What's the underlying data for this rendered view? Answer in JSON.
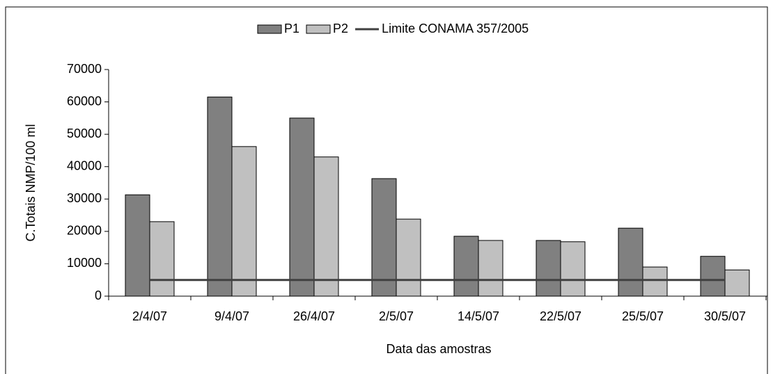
{
  "chart_data": {
    "type": "bar",
    "xlabel": "Data das amostras",
    "ylabel": "C.Totais NMP/100 ml",
    "categories": [
      "2/4/07",
      "9/4/07",
      "26/4/07",
      "2/5/07",
      "14/5/07",
      "22/5/07",
      "25/5/07",
      "30/5/07"
    ],
    "series": [
      {
        "name": "P1",
        "color": "#808080",
        "values": [
          31300,
          61500,
          55000,
          36300,
          18500,
          17200,
          21000,
          12300
        ]
      },
      {
        "name": "P2",
        "color": "#c0c0c0",
        "values": [
          23000,
          46200,
          43000,
          23800,
          17200,
          16800,
          9000,
          8100
        ]
      },
      {
        "name": "Limite CONAMA 357/2005",
        "color": "#404040",
        "type": "line",
        "values": [
          5000,
          5000,
          5000,
          5000,
          5000,
          5000,
          5000,
          5000
        ]
      }
    ],
    "ylim": [
      0,
      70000
    ],
    "yticks": [
      0,
      10000,
      20000,
      30000,
      40000,
      50000,
      60000,
      70000
    ],
    "legend": "top"
  }
}
